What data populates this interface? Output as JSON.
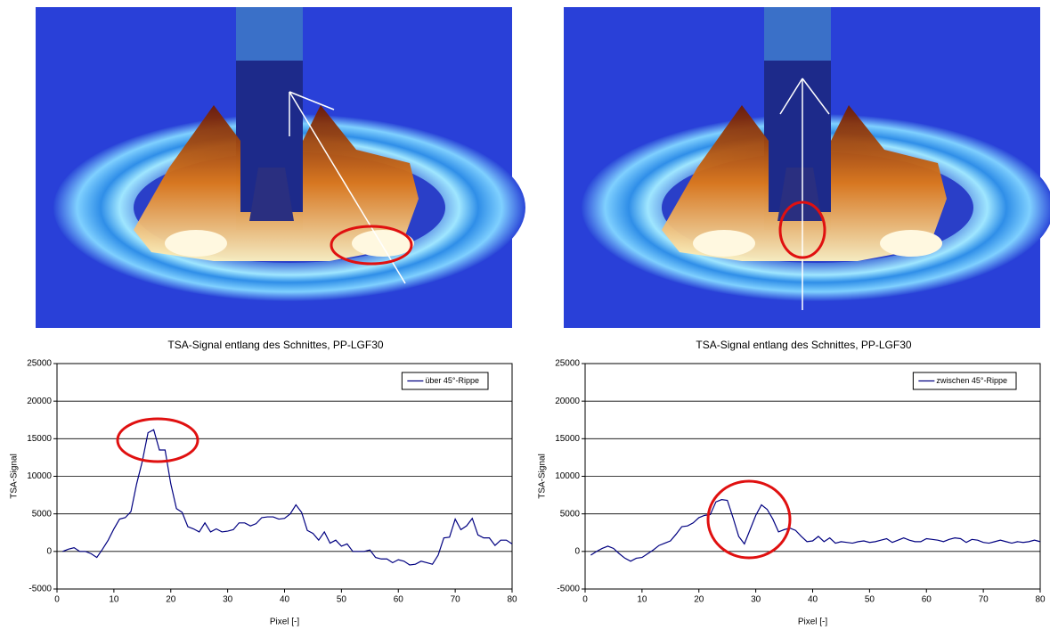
{
  "chart_data": [
    {
      "type": "line",
      "title": "TSA-Signal entlang des Schnittes, PP-LGF30",
      "x_label": "Pixel [-]",
      "y_label": "TSA-Signal",
      "xlim": [
        0,
        80
      ],
      "xticks": [
        0,
        10,
        20,
        30,
        40,
        50,
        60,
        70,
        80
      ],
      "ylim": [
        -5000,
        25000
      ],
      "yticks": [
        -5000,
        0,
        5000,
        10000,
        15000,
        20000,
        25000
      ],
      "grid": true,
      "legend": "upper right",
      "x": [
        1,
        2,
        3,
        4,
        5,
        6,
        7,
        8,
        9,
        10,
        11,
        12,
        13,
        14,
        15,
        16,
        17,
        18,
        19,
        20,
        21,
        22,
        23,
        24,
        25,
        26,
        27,
        28,
        29,
        30,
        31,
        32,
        33,
        34,
        35,
        36,
        37,
        38,
        39,
        40,
        41,
        42,
        43,
        44,
        45,
        46,
        47,
        48,
        49,
        50,
        51,
        52,
        53,
        54,
        55,
        56,
        57,
        58,
        59,
        60,
        61,
        62,
        63,
        64,
        65,
        66,
        67,
        68,
        69,
        70,
        71,
        72,
        73,
        74,
        75,
        76,
        77,
        78,
        79,
        80
      ],
      "series": [
        {
          "name": "über 45°-Rippe",
          "color": "#000080",
          "values": [
            0,
            300,
            500,
            0,
            0,
            -300,
            -800,
            300,
            1500,
            3000,
            4300,
            4500,
            5300,
            9000,
            12000,
            15800,
            16200,
            13500,
            13500,
            9000,
            5700,
            5200,
            3300,
            3000,
            2600,
            3800,
            2600,
            3000,
            2600,
            2700,
            2900,
            3800,
            3800,
            3400,
            3700,
            4500,
            4600,
            4600,
            4300,
            4400,
            5000,
            6200,
            5200,
            2800,
            2400,
            1500,
            2600,
            1100,
            1500,
            700,
            1000,
            0,
            0,
            0,
            200,
            -800,
            -1000,
            -1000,
            -1500,
            -1100,
            -1300,
            -1800,
            -1700,
            -1300,
            -1500,
            -1700,
            -500,
            1800,
            1900,
            4300,
            2900,
            3400,
            4400,
            2200,
            1800,
            1800,
            800,
            1500,
            1500,
            1000
          ]
        }
      ]
    },
    {
      "type": "line",
      "title": "TSA-Signal entlang des Schnittes, PP-LGF30",
      "x_label": "Pixel [-]",
      "y_label": "TSA-Signal",
      "xlim": [
        0,
        80
      ],
      "xticks": [
        0,
        10,
        20,
        30,
        40,
        50,
        60,
        70,
        80
      ],
      "ylim": [
        -5000,
        25000
      ],
      "yticks": [
        -5000,
        0,
        5000,
        10000,
        15000,
        20000,
        25000
      ],
      "grid": true,
      "legend": "upper right",
      "x": [
        1,
        2,
        3,
        4,
        5,
        6,
        7,
        8,
        9,
        10,
        11,
        12,
        13,
        14,
        15,
        16,
        17,
        18,
        19,
        20,
        21,
        22,
        23,
        24,
        25,
        26,
        27,
        28,
        29,
        30,
        31,
        32,
        33,
        34,
        35,
        36,
        37,
        38,
        39,
        40,
        41,
        42,
        43,
        44,
        45,
        46,
        47,
        48,
        49,
        50,
        51,
        52,
        53,
        54,
        55,
        56,
        57,
        58,
        59,
        60,
        61,
        62,
        63,
        64,
        65,
        66,
        67,
        68,
        69,
        70,
        71,
        72,
        73,
        74,
        75,
        76,
        77,
        78,
        79,
        80
      ],
      "series": [
        {
          "name": "zwischen 45°-Rippe",
          "color": "#000080",
          "values": [
            -500,
            0,
            400,
            700,
            400,
            -300,
            -900,
            -1300,
            -900,
            -800,
            -300,
            200,
            800,
            1100,
            1400,
            2300,
            3300,
            3400,
            3800,
            4500,
            4800,
            4900,
            6600,
            6900,
            6800,
            4500,
            2000,
            1000,
            2900,
            4800,
            6200,
            5600,
            4300,
            2600,
            2900,
            3100,
            2800,
            2000,
            1300,
            1400,
            2000,
            1300,
            1800,
            1100,
            1300,
            1200,
            1100,
            1300,
            1400,
            1200,
            1300,
            1500,
            1700,
            1200,
            1500,
            1800,
            1500,
            1300,
            1300,
            1700,
            1600,
            1500,
            1300,
            1600,
            1800,
            1700,
            1200,
            1600,
            1500,
            1200,
            1100,
            1300,
            1500,
            1300,
            1100,
            1300,
            1200,
            1300,
            1500,
            1300
          ]
        }
      ]
    }
  ]
}
